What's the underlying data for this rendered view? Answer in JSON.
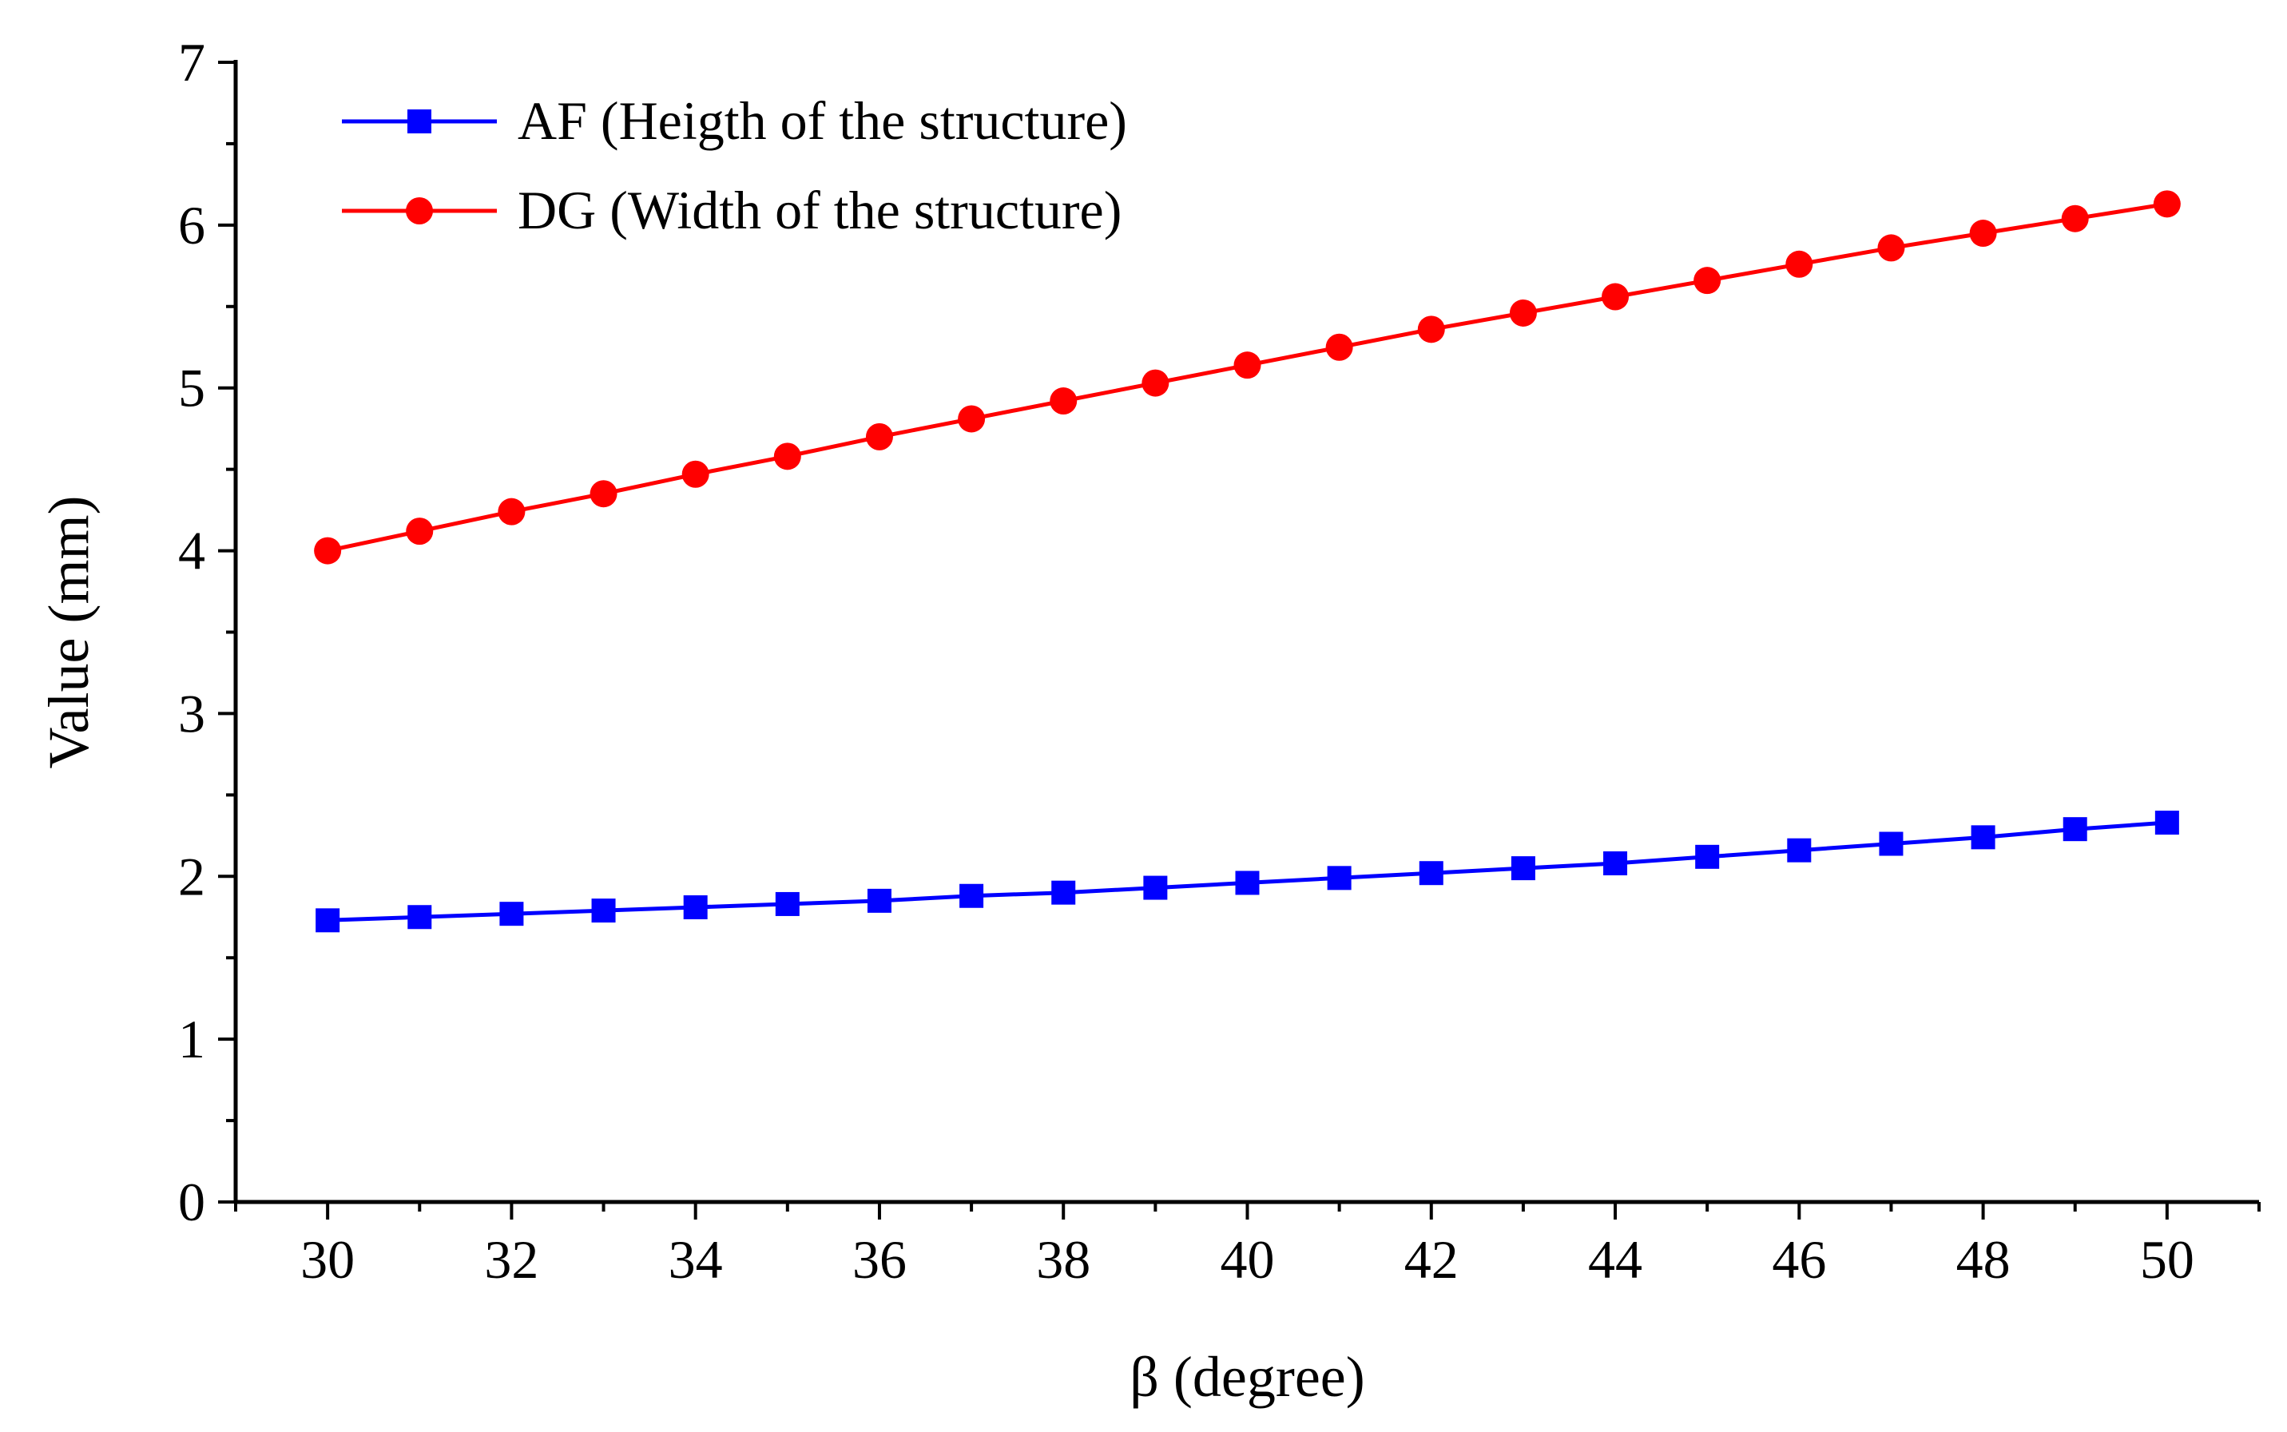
{
  "chart_data": {
    "type": "line",
    "title": "",
    "xlabel": "β (degree)",
    "ylabel": "Value (mm)",
    "x": [
      30,
      31,
      32,
      33,
      34,
      35,
      36,
      37,
      38,
      39,
      40,
      41,
      42,
      43,
      44,
      45,
      46,
      47,
      48,
      49,
      50
    ],
    "xlim": [
      29,
      51
    ],
    "ylim": [
      0,
      7
    ],
    "xticks": [
      30,
      32,
      34,
      36,
      38,
      40,
      42,
      44,
      46,
      48,
      50
    ],
    "yticks": [
      0,
      1,
      2,
      3,
      4,
      5,
      6,
      7
    ],
    "grid": false,
    "legend_position": "top-left",
    "series": [
      {
        "name": "AF (Heigth of the structure)",
        "color": "#0000ff",
        "marker": "square",
        "values": [
          1.73,
          1.75,
          1.77,
          1.79,
          1.81,
          1.83,
          1.85,
          1.88,
          1.9,
          1.93,
          1.96,
          1.99,
          2.02,
          2.05,
          2.08,
          2.12,
          2.16,
          2.2,
          2.24,
          2.29,
          2.33
        ]
      },
      {
        "name": "DG (Width of the structure)",
        "color": "#ff0000",
        "marker": "circle",
        "values": [
          4.0,
          4.12,
          4.24,
          4.35,
          4.47,
          4.58,
          4.7,
          4.81,
          4.92,
          5.03,
          5.14,
          5.25,
          5.36,
          5.46,
          5.56,
          5.66,
          5.76,
          5.86,
          5.95,
          6.04,
          6.13
        ]
      }
    ]
  }
}
